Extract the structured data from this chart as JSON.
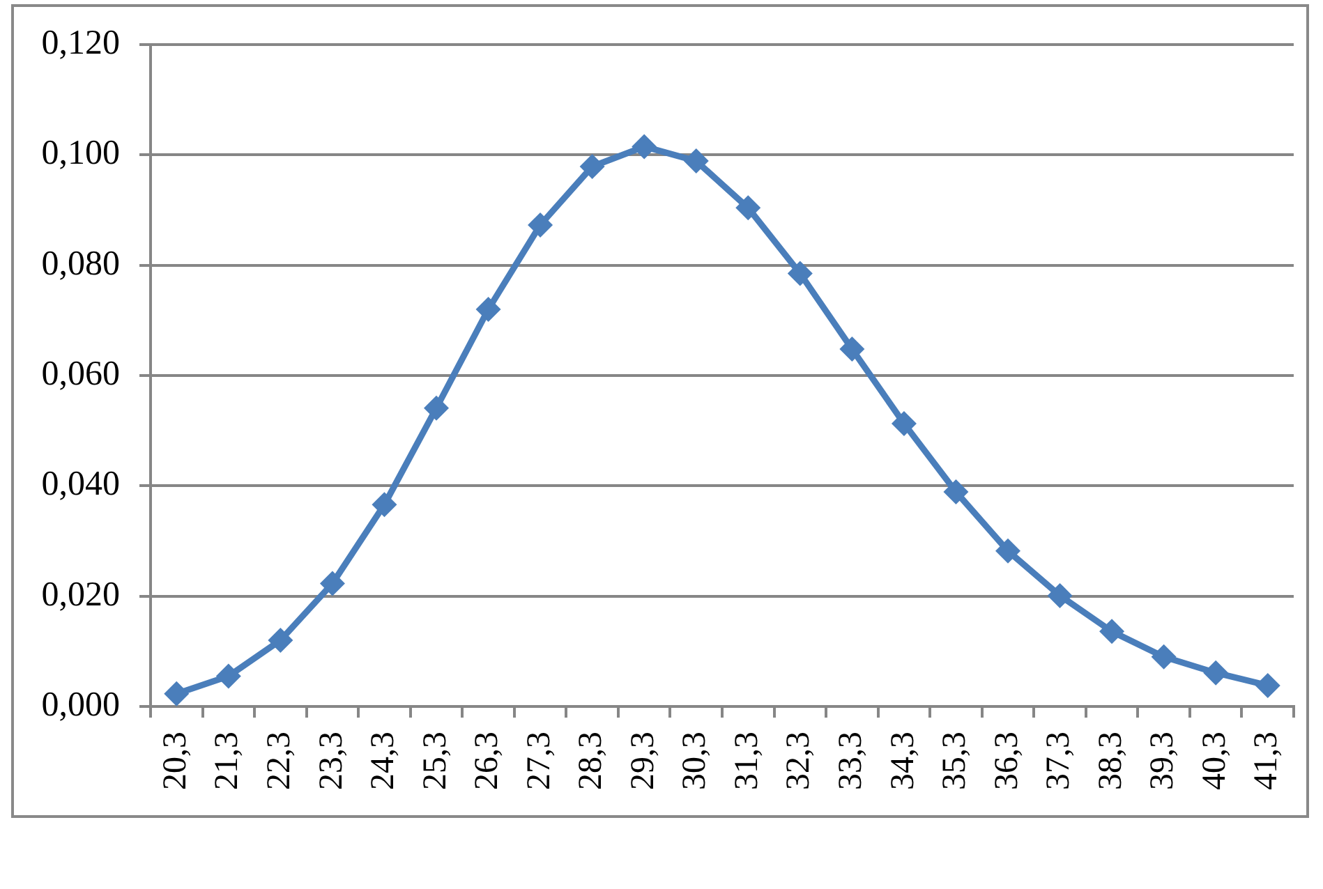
{
  "chart_data": {
    "type": "line",
    "categories": [
      "20,3",
      "21,3",
      "22,3",
      "23,3",
      "24,3",
      "25,3",
      "26,3",
      "27,3",
      "28,3",
      "29,3",
      "30,3",
      "31,3",
      "32,3",
      "33,3",
      "34,3",
      "35,3",
      "36,3",
      "37,3",
      "38,3",
      "39,3",
      "40,3",
      "41,3"
    ],
    "series": [
      {
        "color": "#4a7ebb",
        "values": [
          0.0023,
          0.0055,
          0.012,
          0.0223,
          0.0366,
          0.0541,
          0.072,
          0.0873,
          0.0979,
          0.1015,
          0.0989,
          0.0904,
          0.0785,
          0.0648,
          0.0513,
          0.0389,
          0.0282,
          0.0201,
          0.0136,
          0.009,
          0.0061,
          0.0038
        ]
      }
    ],
    "ylim": [
      0,
      0.12
    ],
    "yticks": [
      {
        "value": 0,
        "label": "0,000"
      },
      {
        "value": 0.02,
        "label": "0,020"
      },
      {
        "value": 0.04,
        "label": "0,040"
      },
      {
        "value": 0.06,
        "label": "0,060"
      },
      {
        "value": 0.08,
        "label": "0,080"
      },
      {
        "value": 0.1,
        "label": "0,100"
      },
      {
        "value": 0.12,
        "label": "0,120"
      }
    ],
    "grid": "y",
    "marker": "diamond",
    "line_style": "solid"
  }
}
